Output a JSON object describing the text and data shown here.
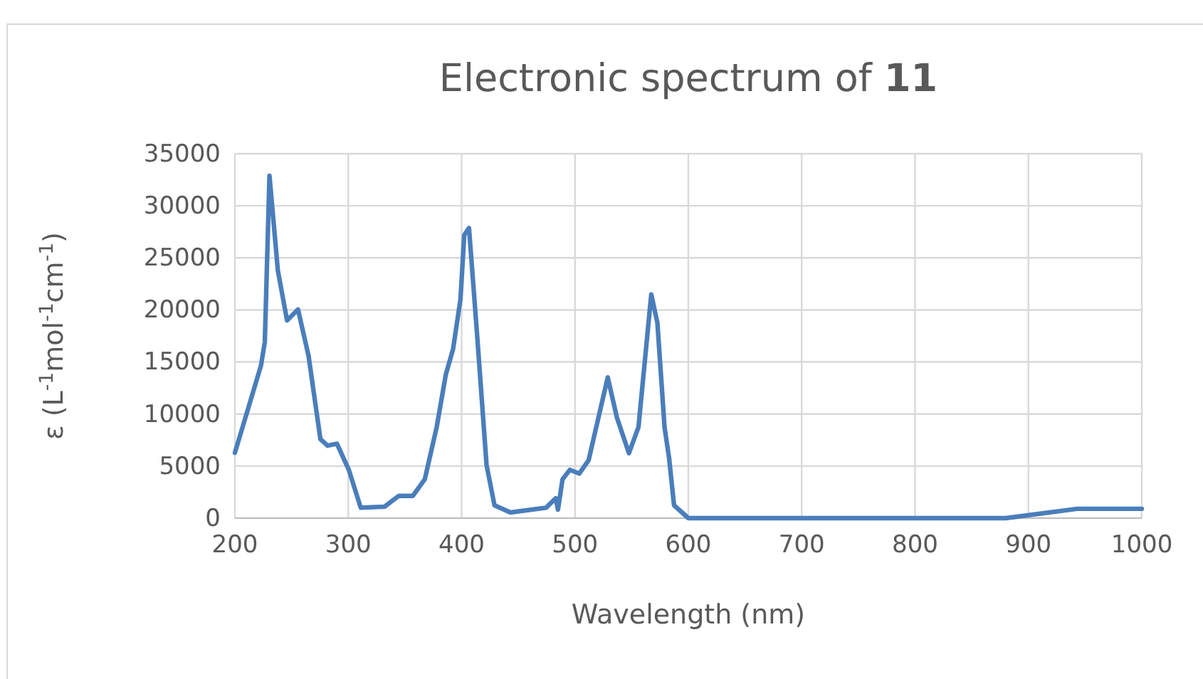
{
  "chart_data": {
    "type": "line",
    "title": "Electronic spectrum of 11",
    "xlabel": "Wavelength (nm)",
    "ylabel": "ε (L$^{-1}$mol$^{-1}$cm$^{-1}$)",
    "xlim": [
      200,
      1000
    ],
    "xticks": [
      200,
      300,
      400,
      500,
      600,
      700,
      800,
      900,
      1000
    ],
    "ylim": [
      0,
      35000
    ],
    "yticks": [
      0,
      5000,
      10000,
      15000,
      20000,
      25000,
      30000,
      35000
    ],
    "grid": true,
    "marker": "none",
    "line_style": "solid",
    "series": [
      {
        "color": "#4a7ebb",
        "x": [
          200,
          223,
          226.4,
          230.5,
          237.9,
          246,
          255.7,
          265,
          275.4,
          281.7,
          290,
          300.5,
          311,
          332,
          344.5,
          357,
          367.5,
          378,
          386,
          392.5,
          399,
          402.3,
          406.5,
          413.5,
          422,
          429,
          443,
          474.5,
          483,
          485,
          489,
          495.5,
          503.8,
          512,
          528.9,
          537,
          547.6,
          556,
          567.3,
          572.7,
          579,
          583,
          587.4,
          600,
          880,
          943,
          1000
        ],
        "values": [
          6280,
          14650,
          16940,
          32880,
          23770,
          18990,
          20040,
          15570,
          7600,
          6960,
          7150,
          4640,
          1000,
          1100,
          2140,
          2140,
          3730,
          8740,
          13760,
          16260,
          21040,
          27190,
          27870,
          17850,
          5100,
          1230,
          550,
          1000,
          1910,
          820,
          3730,
          4640,
          4280,
          5560,
          13520,
          9660,
          6240,
          8740,
          21490,
          18760,
          8740,
          5780,
          1230,
          0,
          0,
          900,
          900
        ]
      }
    ]
  }
}
